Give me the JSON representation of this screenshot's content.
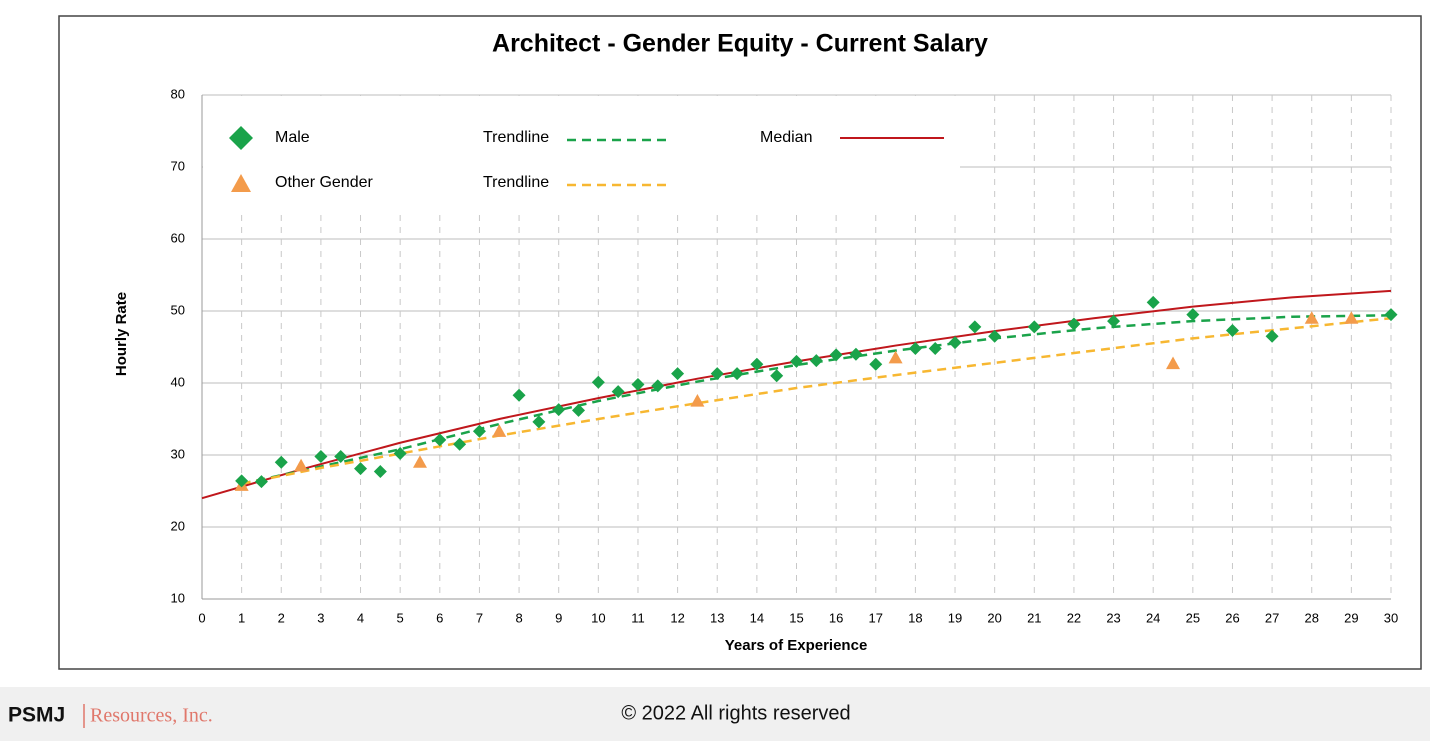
{
  "chart_data": {
    "type": "scatter",
    "title": "Architect - Gender Equity - Current Salary",
    "x_label": "Years of Experience",
    "y_label": "Hourly Rate",
    "xlim": [
      0,
      30
    ],
    "ylim": [
      10,
      80
    ],
    "xticks": [
      0,
      1,
      2,
      3,
      4,
      5,
      6,
      7,
      8,
      9,
      10,
      11,
      12,
      13,
      14,
      15,
      16,
      17,
      18,
      19,
      20,
      21,
      22,
      23,
      24,
      25,
      26,
      27,
      28,
      29,
      30
    ],
    "yticks": [
      10,
      20,
      30,
      40,
      50,
      60,
      70,
      80
    ],
    "grid": true,
    "series": [
      {
        "name": "Male",
        "color": "#1aa34a",
        "marker": "diamond",
        "x": [
          1,
          1.5,
          2,
          3,
          3.5,
          4,
          4.5,
          5,
          6,
          6.5,
          7,
          8,
          8.5,
          9,
          9.5,
          10,
          10.5,
          11,
          11.5,
          12,
          13,
          13.5,
          14,
          14.5,
          15,
          15.5,
          16,
          16.5,
          17,
          18,
          18.5,
          19,
          19.5,
          20,
          21,
          22,
          23,
          24,
          25,
          26,
          27,
          30
        ],
        "values": [
          26.4,
          26.3,
          29,
          29.8,
          29.8,
          28.1,
          27.7,
          30.2,
          32.1,
          31.5,
          33.3,
          38.3,
          34.6,
          36.3,
          36.2,
          40.1,
          38.8,
          39.8,
          39.6,
          41.3,
          41.3,
          41.3,
          42.6,
          41,
          43,
          43.1,
          43.9,
          44,
          42.6,
          44.8,
          44.8,
          45.6,
          47.8,
          46.5,
          47.8,
          48.2,
          48.6,
          51.2,
          49.5,
          47.3,
          46.5,
          49.5
        ]
      },
      {
        "name": "Trendline",
        "color": "#1aa34a",
        "marker": "dashed-line",
        "x": [
          1,
          3,
          5,
          7.5,
          10,
          12.5,
          15,
          17.5,
          20,
          22.5,
          25,
          27.5,
          30
        ],
        "values": [
          26,
          28.4,
          30.8,
          34.3,
          37.5,
          40.2,
          42.5,
          44.5,
          46.2,
          47.6,
          48.6,
          49.2,
          49.4
        ]
      },
      {
        "name": "Median",
        "color": "#c0171c",
        "marker": "line",
        "x": [
          0,
          2.5,
          5,
          7.5,
          10,
          12.5,
          15,
          17.5,
          20,
          22.5,
          25,
          27.5,
          30
        ],
        "values": [
          24,
          28,
          31.7,
          35,
          37.9,
          40.6,
          43,
          45.2,
          47.2,
          49,
          50.6,
          51.9,
          52.8
        ]
      },
      {
        "name": "Other Gender",
        "color": "#f39b4b",
        "marker": "triangle",
        "x": [
          1,
          2.5,
          5.5,
          7.5,
          12.5,
          17.5,
          24.5,
          28,
          29
        ],
        "values": [
          25.8,
          28.5,
          29,
          33.3,
          37.5,
          43.5,
          42.7,
          49,
          49
        ]
      },
      {
        "name": "Trendline",
        "color": "#f7b731",
        "marker": "dashed-line",
        "x": [
          1,
          3,
          5,
          7.5,
          10,
          12.5,
          15,
          17.5,
          20,
          22.5,
          25,
          27.5,
          30
        ],
        "values": [
          26,
          28.2,
          30.2,
          32.7,
          35,
          37.2,
          39.3,
          41.1,
          42.8,
          44.5,
          46.2,
          47.6,
          49
        ]
      }
    ]
  },
  "footer": {
    "brand": "PSMJ",
    "brand_sub": "Resources, Inc.",
    "copyright": "© 2022 All rights reserved"
  }
}
